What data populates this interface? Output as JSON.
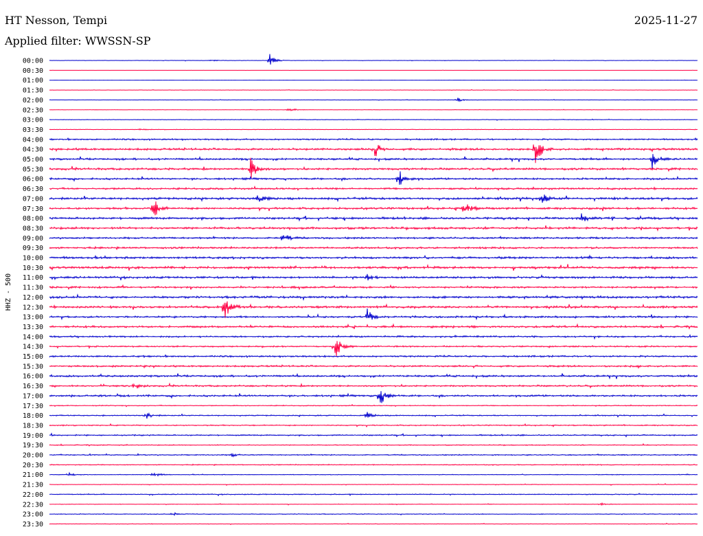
{
  "header": {
    "station": "HT Nesson, Tempi",
    "date": "2025-11-27",
    "filter": "Applied filter: WWSSN-SP"
  },
  "channel_label": "HHZ - 500",
  "colors": {
    "odd": "#0000cc",
    "even": "#ff0044"
  },
  "chart_data": {
    "type": "line",
    "title": "",
    "row_labels": [
      "00:00",
      "00:30",
      "01:00",
      "01:30",
      "02:00",
      "02:30",
      "03:00",
      "03:30",
      "04:00",
      "04:30",
      "05:00",
      "05:30",
      "06:00",
      "06:30",
      "07:00",
      "07:30",
      "08:00",
      "08:30",
      "09:00",
      "09:30",
      "10:00",
      "10:30",
      "11:00",
      "11:30",
      "12:00",
      "12:30",
      "13:00",
      "13:30",
      "14:00",
      "14:30",
      "15:00",
      "15:30",
      "16:00",
      "16:30",
      "17:00",
      "17:30",
      "18:00",
      "18:30",
      "19:00",
      "19:30",
      "20:00",
      "20:30",
      "21:00",
      "21:30",
      "22:00",
      "22:30",
      "23:00",
      "23:30"
    ],
    "row_colors": [
      "blue",
      "red",
      "blue",
      "red",
      "blue",
      "red",
      "blue",
      "red",
      "blue",
      "red",
      "blue",
      "red",
      "blue",
      "red",
      "blue",
      "red",
      "blue",
      "red",
      "blue",
      "red",
      "blue",
      "red",
      "blue",
      "red",
      "blue",
      "red",
      "blue",
      "red",
      "blue",
      "red",
      "blue",
      "red",
      "blue",
      "red",
      "blue",
      "red",
      "blue",
      "red",
      "blue",
      "red",
      "blue",
      "red",
      "blue",
      "red",
      "blue",
      "red",
      "blue",
      "red"
    ],
    "noise_level": [
      0.2,
      0.1,
      0.1,
      0.2,
      0.2,
      0.2,
      0.3,
      0.3,
      0.8,
      1.2,
      1.0,
      1.1,
      1.0,
      1.0,
      1.2,
      1.1,
      1.2,
      1.2,
      1.0,
      1.0,
      1.2,
      1.2,
      1.1,
      1.0,
      1.2,
      1.2,
      1.0,
      1.1,
      0.9,
      0.8,
      0.9,
      1.0,
      1.0,
      0.9,
      1.0,
      0.5,
      0.6,
      0.6,
      0.7,
      0.5,
      0.6,
      0.5,
      0.4,
      0.3,
      0.5,
      0.3,
      0.4,
      0.3
    ],
    "events": [
      {
        "row": 0,
        "t": 0.34,
        "amp": 10
      },
      {
        "row": 0,
        "t": 0.25,
        "amp": 2
      },
      {
        "row": 4,
        "t": 0.63,
        "amp": 3
      },
      {
        "row": 5,
        "t": 0.37,
        "amp": 3
      },
      {
        "row": 7,
        "t": 0.14,
        "amp": 2
      },
      {
        "row": 9,
        "t": 0.5,
        "amp": 14
      },
      {
        "row": 9,
        "t": 0.75,
        "amp": 22
      },
      {
        "row": 10,
        "t": 0.93,
        "amp": 14
      },
      {
        "row": 11,
        "t": 0.31,
        "amp": 20
      },
      {
        "row": 12,
        "t": 0.54,
        "amp": 14
      },
      {
        "row": 14,
        "t": 0.32,
        "amp": 8
      },
      {
        "row": 14,
        "t": 0.76,
        "amp": 9
      },
      {
        "row": 15,
        "t": 0.16,
        "amp": 16
      },
      {
        "row": 15,
        "t": 0.64,
        "amp": 12
      },
      {
        "row": 16,
        "t": 0.82,
        "amp": 8
      },
      {
        "row": 18,
        "t": 0.36,
        "amp": 10
      },
      {
        "row": 22,
        "t": 0.49,
        "amp": 5
      },
      {
        "row": 25,
        "t": 0.27,
        "amp": 20
      },
      {
        "row": 26,
        "t": 0.49,
        "amp": 12
      },
      {
        "row": 29,
        "t": 0.44,
        "amp": 22
      },
      {
        "row": 33,
        "t": 0.13,
        "amp": 6
      },
      {
        "row": 34,
        "t": 0.51,
        "amp": 16
      },
      {
        "row": 36,
        "t": 0.15,
        "amp": 5
      },
      {
        "row": 36,
        "t": 0.49,
        "amp": 5
      },
      {
        "row": 40,
        "t": 0.28,
        "amp": 3
      },
      {
        "row": 42,
        "t": 0.03,
        "amp": 3
      },
      {
        "row": 42,
        "t": 0.16,
        "amp": 4
      },
      {
        "row": 45,
        "t": 0.85,
        "amp": 2
      },
      {
        "row": 46,
        "t": 0.19,
        "amp": 2
      }
    ]
  }
}
